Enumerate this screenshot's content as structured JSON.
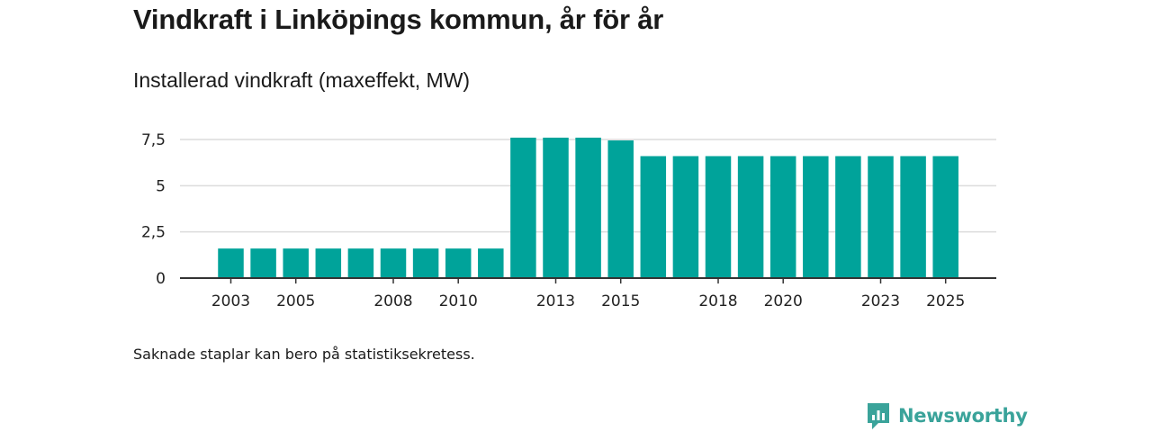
{
  "header": {
    "title": "Vindkraft i Linköpings kommun, år för år",
    "subtitle": "Installerad vindkraft (maxeffekt, MW)"
  },
  "footer": {
    "note": "Saknade staplar kan bero på statistiksekretess.",
    "brand": "Newsworthy"
  },
  "colors": {
    "bar": "#00a39a",
    "grid": "#dcdcdc",
    "axis": "#333333",
    "brand": "#3aa39a"
  },
  "chart_data": {
    "type": "bar",
    "title": "Vindkraft i Linköpings kommun, år för år",
    "subtitle": "Installerad vindkraft (maxeffekt, MW)",
    "xlabel": "",
    "ylabel": "",
    "categories": [
      "2003",
      "2004",
      "2005",
      "2006",
      "2007",
      "2008",
      "2009",
      "2010",
      "2011",
      "2012",
      "2013",
      "2014",
      "2015",
      "2016",
      "2017",
      "2018",
      "2019",
      "2020",
      "2021",
      "2022",
      "2023",
      "2024",
      "2025"
    ],
    "values": [
      1.6,
      1.6,
      1.6,
      1.6,
      1.6,
      1.6,
      1.6,
      1.6,
      1.6,
      7.6,
      7.6,
      7.6,
      7.45,
      6.6,
      6.6,
      6.6,
      6.6,
      6.6,
      6.6,
      6.6,
      6.6,
      6.6,
      6.6
    ],
    "x_tick_labels": [
      "2003",
      "2005",
      "2008",
      "2010",
      "2013",
      "2015",
      "2018",
      "2020",
      "2023",
      "2025"
    ],
    "y_ticks": [
      0,
      2.5,
      5,
      7.5
    ],
    "y_tick_labels": [
      "0",
      "2,5",
      "5",
      "7,5"
    ],
    "ylim": [
      0,
      7.5
    ],
    "grid": true
  }
}
